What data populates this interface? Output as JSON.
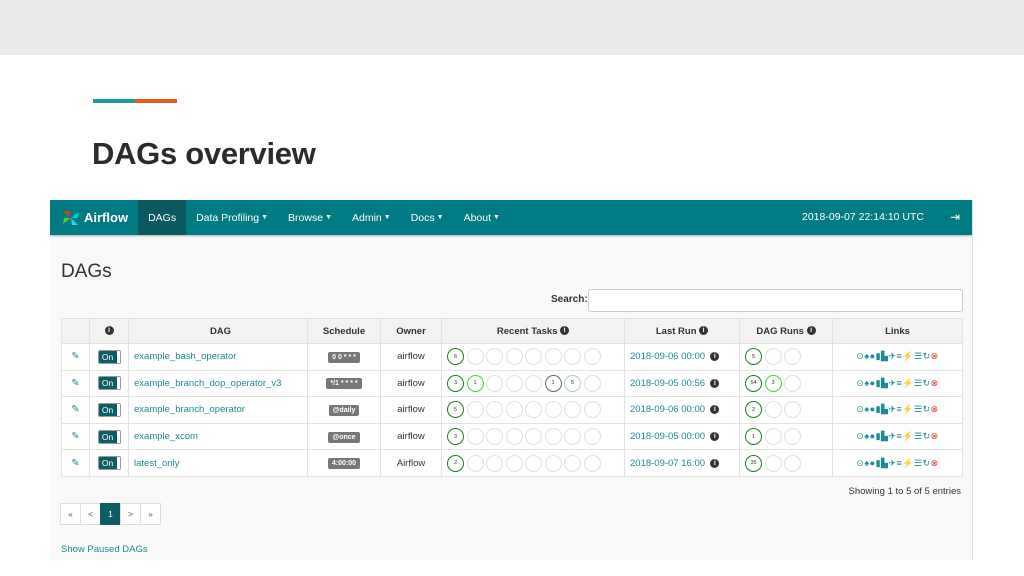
{
  "slide": {
    "title": "DAGs overview",
    "accent_colors": [
      "#1f9a96",
      "#e35d1b"
    ]
  },
  "navbar": {
    "brand": "Airflow",
    "items": [
      {
        "label": "DAGs",
        "active": true
      },
      {
        "label": "Data Profiling",
        "caret": true
      },
      {
        "label": "Browse",
        "caret": true
      },
      {
        "label": "Admin",
        "caret": true
      },
      {
        "label": "Docs",
        "caret": true
      },
      {
        "label": "About",
        "caret": true
      }
    ],
    "clock": "2018-09-07 22:14:10 UTC",
    "logout_icon": "sign-out-icon",
    "color": "#017b83"
  },
  "page": {
    "heading": "DAGs",
    "search_label": "Search:",
    "search_value": ""
  },
  "table": {
    "headers": [
      "",
      "",
      "DAG",
      "Schedule",
      "Owner",
      "Recent Tasks",
      "Last Run",
      "DAG Runs",
      "Links"
    ],
    "rows": [
      {
        "toggle": "On",
        "dag": "example_bash_operator",
        "schedule": "0 0 * * *",
        "owner": "airflow",
        "recent_tasks": [
          {
            "n": "6",
            "c": "#1e7d1e"
          },
          {},
          {},
          {},
          {},
          {},
          {},
          {}
        ],
        "last_run": "2018-09-06 00:00",
        "dag_runs": [
          {
            "n": "5",
            "c": "#1e7d1e"
          },
          {},
          {}
        ]
      },
      {
        "toggle": "On",
        "dag": "example_branch_dop_operator_v3",
        "schedule": "*/1 * * * *",
        "owner": "airflow",
        "recent_tasks": [
          {
            "n": "3",
            "c": "#1e7d1e"
          },
          {
            "n": "1",
            "c": "#3fd43f"
          },
          {},
          {},
          {},
          {
            "n": "1",
            "c": "#666"
          },
          {
            "n": "5",
            "c": "#a9cbd8"
          },
          {}
        ],
        "last_run": "2018-09-05 00:56",
        "dag_runs": [
          {
            "n": "54",
            "c": "#1e7d1e"
          },
          {
            "n": "3",
            "c": "#3fd43f"
          },
          {}
        ]
      },
      {
        "toggle": "On",
        "dag": "example_branch_operator",
        "schedule": "@daily",
        "owner": "airflow",
        "recent_tasks": [
          {
            "n": "5",
            "c": "#1e7d1e"
          },
          {},
          {},
          {},
          {},
          {},
          {},
          {}
        ],
        "last_run": "2018-09-06 00:00",
        "dag_runs": [
          {
            "n": "2",
            "c": "#1e7d1e"
          },
          {},
          {}
        ]
      },
      {
        "toggle": "On",
        "dag": "example_xcom",
        "schedule": "@once",
        "owner": "airflow",
        "recent_tasks": [
          {
            "n": "3",
            "c": "#1e7d1e"
          },
          {},
          {},
          {},
          {},
          {},
          {},
          {}
        ],
        "last_run": "2018-09-05 00:00",
        "dag_runs": [
          {
            "n": "1",
            "c": "#1e7d1e"
          },
          {},
          {}
        ]
      },
      {
        "toggle": "On",
        "dag": "latest_only",
        "schedule": "4:00:00",
        "owner": "Airflow",
        "recent_tasks": [
          {
            "n": "2",
            "c": "#1e7d1e"
          },
          {},
          {},
          {},
          {},
          {},
          {},
          {}
        ],
        "last_run": "2018-09-07 16:00",
        "dag_runs": [
          {
            "n": "35",
            "c": "#1e7d1e"
          },
          {},
          {}
        ]
      }
    ],
    "link_icons": [
      "play-circle-icon",
      "tree-icon",
      "graph-icon",
      "bar-chart-icon",
      "duration-icon",
      "plane-icon",
      "gantt-icon",
      "flash-icon",
      "code-icon",
      "refresh-icon",
      "delete-icon"
    ]
  },
  "footer": {
    "showing": "Showing 1 to 5 of 5 entries",
    "pager": [
      "«",
      "<",
      "1",
      ">",
      "»"
    ],
    "active_page": "1",
    "paused_link": "Show Paused DAGs"
  }
}
